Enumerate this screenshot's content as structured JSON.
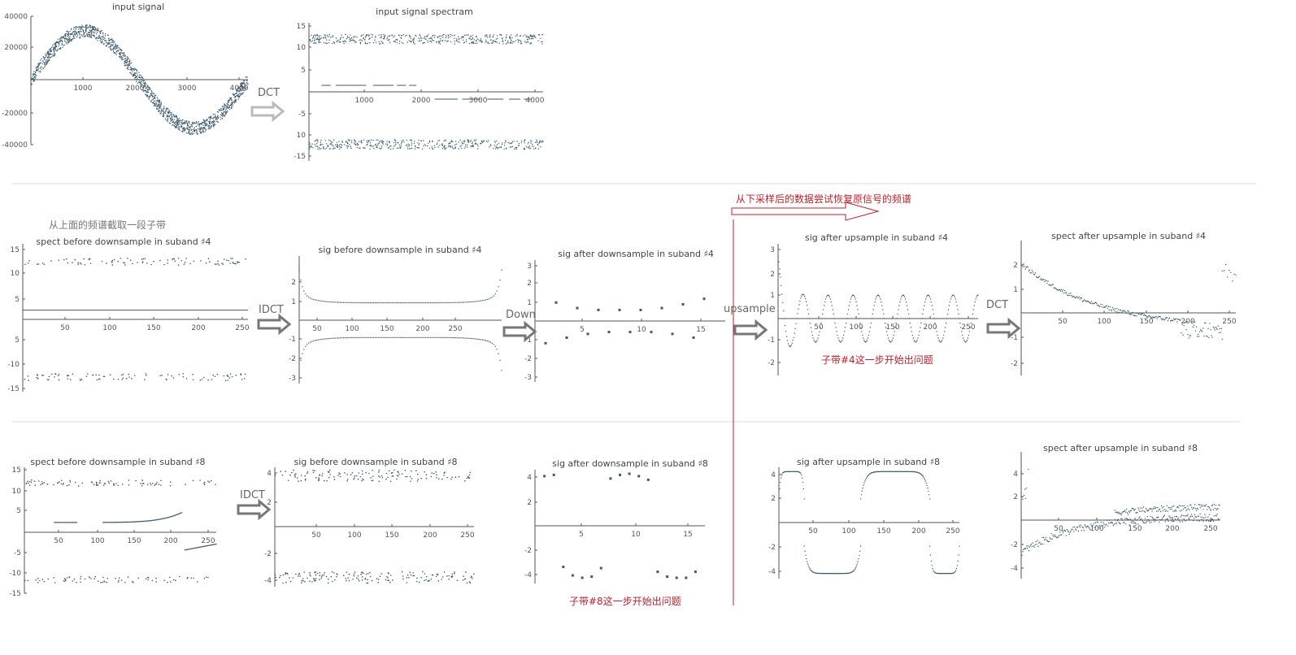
{
  "annotations": {
    "recover_note": "从下采样后的数据尝试恢复原信号的频谱",
    "subband_note": "从上面的频谱截取一段子带",
    "problem4": "子带#4这一步开始出问题",
    "problem8": "子带#8这一步开始出问题"
  },
  "arrows": [
    {
      "label": "DCT"
    },
    {
      "label": "IDCT"
    },
    {
      "label": "Down"
    },
    {
      "label": "upsample"
    },
    {
      "label": "DCT"
    },
    {
      "label": "IDCT"
    }
  ],
  "colors": {
    "points": "#3d5a6c",
    "red": "#c0202a",
    "arrow": "#777777",
    "arrow_light": "#bbbbbb"
  },
  "chart_data": [
    {
      "type": "scatter",
      "title": "input  signal",
      "xticks": [
        "1000",
        "2000",
        "3000",
        "4000"
      ],
      "yticks": [
        "40000",
        "20000",
        "-20000",
        "-40000"
      ],
      "xlim": [
        0,
        4096
      ],
      "ylim": [
        -45000,
        45000
      ],
      "series": [
        {
          "x": [
            0,
            1024,
            2048,
            3072,
            4096
          ],
          "y": [
            0,
            35000,
            0,
            -35000,
            0
          ],
          "spread": 9000
        }
      ]
    },
    {
      "type": "scatter",
      "title": "input  signal spectram",
      "xticks": [
        "1000",
        "2000",
        "3000",
        "4000"
      ],
      "yticks": [
        "15",
        "10",
        "5",
        "-5",
        "10",
        "-15"
      ],
      "xlim": [
        0,
        4096
      ],
      "ylim": [
        -16,
        16
      ]
    },
    {
      "type": "scatter",
      "title": "spect  before  downsample   in  suband  ♯4",
      "xticks": [
        "50",
        "100",
        "150",
        "200",
        "250"
      ],
      "yticks": [
        "15",
        "10",
        "5",
        "5",
        "-10",
        "-15"
      ],
      "xlim": [
        0,
        256
      ],
      "ylim": [
        -16,
        16
      ]
    },
    {
      "type": "scatter",
      "title": "sig  before  downsample   in  suband  ♯4",
      "xticks": [
        "50",
        "100",
        "150",
        "200",
        "250"
      ],
      "yticks": [
        "2",
        "1",
        "-1",
        "-2",
        "-3"
      ],
      "xlim": [
        0,
        256
      ],
      "ylim": [
        -3.3,
        3.3
      ]
    },
    {
      "type": "scatter",
      "title": "sig  after  downsample   in  suband  ♯4",
      "xticks": [
        "5",
        "10",
        "15"
      ],
      "yticks": [
        "3",
        "2",
        "1",
        "1",
        "-2",
        "-3"
      ],
      "xlim": [
        0,
        18
      ],
      "ylim": [
        -3.3,
        3.3
      ],
      "series": [
        {
          "x": [
            1,
            2,
            3,
            4,
            5,
            6,
            7,
            8,
            9,
            10,
            11,
            12,
            13,
            14,
            15,
            16
          ],
          "y": [
            -1.2,
            1.0,
            -0.9,
            0.7,
            -0.7,
            0.6,
            -0.6,
            0.6,
            -0.6,
            0.6,
            -0.6,
            0.7,
            -0.7,
            0.9,
            -0.9,
            1.2
          ]
        }
      ]
    },
    {
      "type": "scatter",
      "title": "sig  after  upsample   in  suband  ♯4",
      "xticks": [
        "50",
        "100",
        "150",
        "200",
        "250"
      ],
      "yticks": [
        "3",
        "2",
        "1",
        "-1",
        "-2"
      ],
      "xlim": [
        0,
        256
      ],
      "ylim": [
        -2.3,
        3.3
      ]
    },
    {
      "type": "scatter",
      "title": "spect  after  upsample   in  suband  ♯4",
      "xticks": [
        "50",
        "100",
        "150",
        "200",
        "250"
      ],
      "yticks": [
        "2",
        "1",
        "-1",
        "-2"
      ],
      "xlim": [
        0,
        256
      ],
      "ylim": [
        -2.5,
        2.7
      ]
    },
    {
      "type": "scatter",
      "title": "spect  before  downsample   in  suband  ♯8",
      "xticks": [
        "50",
        "100",
        "150",
        "200",
        "250"
      ],
      "yticks": [
        "15",
        "10",
        "5",
        "-5",
        "-10",
        "-15"
      ],
      "xlim": [
        0,
        256
      ],
      "ylim": [
        -16,
        16
      ]
    },
    {
      "type": "scatter",
      "title": "sig  before  downsample   in  suband  ♯8",
      "xticks": [
        "50",
        "100",
        "150",
        "200",
        "250"
      ],
      "yticks": [
        "4",
        "2",
        "-2",
        "-4"
      ],
      "xlim": [
        0,
        256
      ],
      "ylim": [
        -4.7,
        4.7
      ]
    },
    {
      "type": "scatter",
      "title": "sig  after  downsample   in  suband  ♯8",
      "xticks": [
        "5",
        "10",
        "15"
      ],
      "yticks": [
        "4",
        "2",
        "-2",
        "-4"
      ],
      "xlim": [
        0,
        18
      ],
      "ylim": [
        -4.7,
        4.7
      ],
      "series": [
        {
          "x": [
            1,
            2,
            3,
            4,
            5,
            6,
            7,
            8,
            9,
            10,
            11,
            12,
            13,
            14,
            15,
            16,
            17
          ],
          "y": [
            4.1,
            4.2,
            -3.4,
            -4.1,
            -4.3,
            -4.2,
            -3.5,
            3.9,
            4.2,
            4.3,
            4.1,
            3.8,
            -3.8,
            -4.2,
            -4.3,
            -4.3,
            -3.8
          ]
        }
      ]
    },
    {
      "type": "scatter",
      "title": "sig  after  upsample   in  suband  ♯8",
      "xticks": [
        "50",
        "100",
        "150",
        "200",
        "250"
      ],
      "yticks": [
        "4",
        "2",
        "-2",
        "-4"
      ],
      "xlim": [
        0,
        256
      ],
      "ylim": [
        -4.7,
        4.7
      ]
    },
    {
      "type": "scatter",
      "title": "spect  after  upsample   in  suband  ♯8",
      "xticks": [
        "50",
        "100",
        "150",
        "200",
        "250"
      ],
      "yticks": [
        "4",
        "2",
        "-2",
        "-4"
      ],
      "xlim": [
        0,
        256
      ],
      "ylim": [
        -5,
        5.5
      ]
    }
  ]
}
